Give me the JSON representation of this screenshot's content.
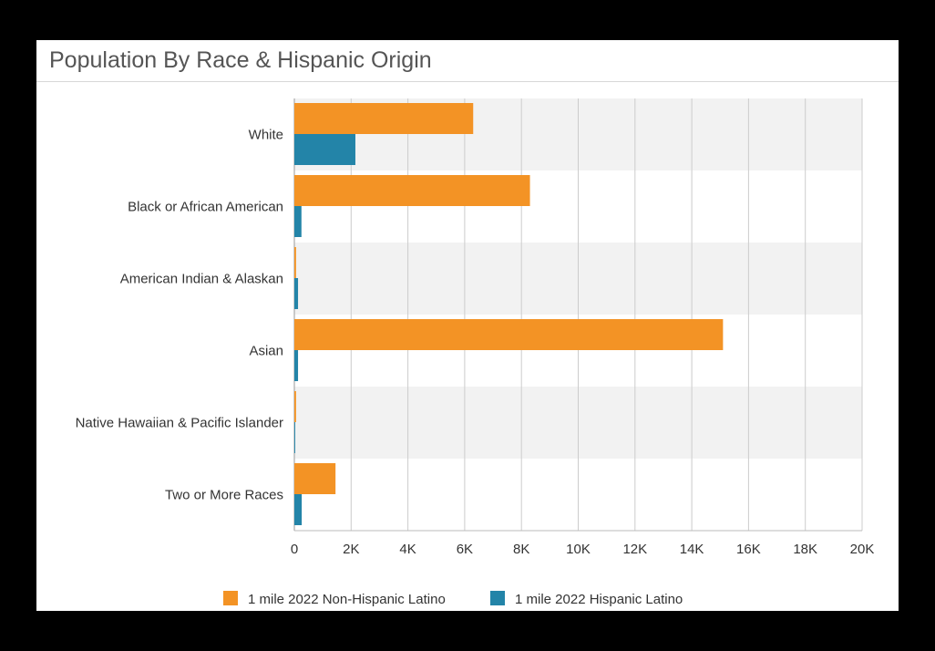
{
  "chart_data": {
    "type": "bar",
    "orientation": "horizontal",
    "title": "Population By Race & Hispanic Origin",
    "categories": [
      "White",
      "Black or African American",
      "American Indian & Alaskan",
      "Asian",
      "Native Hawaiian & Pacific Islander",
      "Two or More Races"
    ],
    "series": [
      {
        "name": "1 mile 2022 Non-Hispanic Latino",
        "color": "#f39325",
        "values": [
          6300,
          8300,
          60,
          15100,
          60,
          1450
        ]
      },
      {
        "name": "1 mile 2022 Hispanic Latino",
        "color": "#2384a8",
        "values": [
          2150,
          250,
          130,
          130,
          30,
          260
        ]
      }
    ],
    "xlim": [
      0,
      20000
    ],
    "ticks": [
      0,
      2000,
      4000,
      6000,
      8000,
      10000,
      12000,
      14000,
      16000,
      18000,
      20000
    ],
    "tick_labels": [
      "0",
      "2K",
      "4K",
      "6K",
      "8K",
      "10K",
      "12K",
      "14K",
      "16K",
      "18K",
      "20K"
    ],
    "grid": true,
    "band_colors": [
      "#f2f2f2",
      "#ffffff"
    ],
    "legend_position": "bottom-center"
  }
}
